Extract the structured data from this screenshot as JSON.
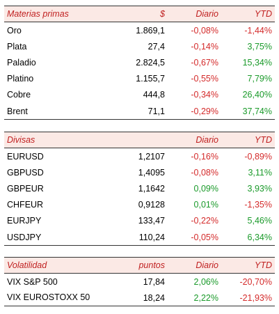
{
  "materias": {
    "headers": {
      "name": "Materias primas",
      "price": "$",
      "daily": "Diario",
      "ytd": "YTD"
    },
    "rows": [
      {
        "name": "Oro",
        "price": "1.869,1",
        "daily": "-0,08%",
        "ytd": "-1,44%"
      },
      {
        "name": "Plata",
        "price": "27,4",
        "daily": "-0,14%",
        "ytd": "3,75%"
      },
      {
        "name": "Paladio",
        "price": "2.824,5",
        "daily": "-0,67%",
        "ytd": "15,34%"
      },
      {
        "name": "Platino",
        "price": "1.155,7",
        "daily": "-0,55%",
        "ytd": "7,79%"
      },
      {
        "name": "Cobre",
        "price": "444,8",
        "daily": "-0,34%",
        "ytd": "26,40%"
      },
      {
        "name": "Brent",
        "price": "71,1",
        "daily": "-0,29%",
        "ytd": "37,74%"
      }
    ]
  },
  "divisas": {
    "headers": {
      "name": "Divisas",
      "price": "",
      "daily": "Diario",
      "ytd": "YTD"
    },
    "rows": [
      {
        "name": "EURUSD",
        "price": "1,2107",
        "daily": "-0,16%",
        "ytd": "-0,89%"
      },
      {
        "name": "GBPUSD",
        "price": "1,4095",
        "daily": "-0,08%",
        "ytd": "3,11%"
      },
      {
        "name": "GBPEUR",
        "price": "1,1642",
        "daily": "0,09%",
        "ytd": "3,93%"
      },
      {
        "name": "CHFEUR",
        "price": "0,9128",
        "daily": "0,01%",
        "ytd": "-1,35%"
      },
      {
        "name": "EURJPY",
        "price": "133,47",
        "daily": "-0,22%",
        "ytd": "5,46%"
      },
      {
        "name": "USDJPY",
        "price": "110,24",
        "daily": "-0,05%",
        "ytd": "6,34%"
      }
    ]
  },
  "volatilidad": {
    "headers": {
      "name": "Volatilidad",
      "price": "puntos",
      "daily": "Diario",
      "ytd": "YTD"
    },
    "rows": [
      {
        "name": "VIX S&P 500",
        "price": "17,84",
        "daily": "2,06%",
        "ytd": "-20,70%"
      },
      {
        "name": "VIX EUROSTOXX 50",
        "price": "18,24",
        "daily": "2,22%",
        "ytd": "-21,93%"
      }
    ]
  },
  "colors": {
    "header_bg": "#fbe9e5",
    "header_text": "#c02020",
    "negative": "#d42a2a",
    "positive": "#1a9a2a"
  }
}
